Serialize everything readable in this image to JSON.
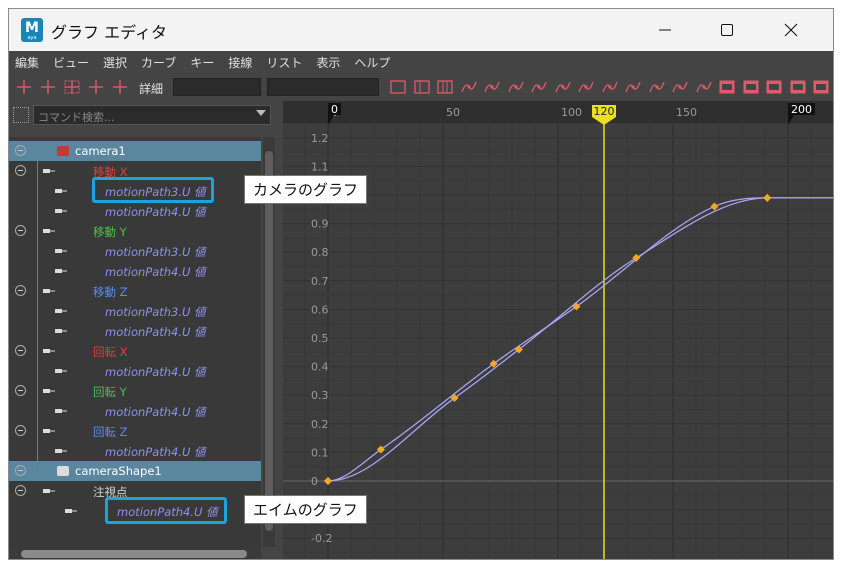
{
  "window": {
    "title": "グラフ エディタ",
    "app_icon_letter": "M",
    "app_icon_sub": "aya",
    "controls": [
      "minimize-icon",
      "maximize-icon",
      "close-icon"
    ]
  },
  "menu": [
    "編集",
    "ビュー",
    "選択",
    "カーブ",
    "キー",
    "接線",
    "リスト",
    "表示",
    "ヘルプ"
  ],
  "toolbar": {
    "detail_label": "詳細",
    "icons_left": [
      "move-nearest-key-icon",
      "insert-key-icon",
      "lattice-deform-icon",
      "region-select-icon",
      "retime-icon"
    ],
    "icons_right": [
      "frame-all-icon",
      "frame-selection-icon",
      "frame-playback-icon",
      "auto-tangent-icon",
      "spline-tangent-icon",
      "clamped-tangent-icon",
      "linear-tangent-icon",
      "flat-tangent-icon",
      "step-tangent-icon",
      "plateau-tangent-icon",
      "break-tangent-icon",
      "unify-tangent-icon",
      "free-weight-icon",
      "lock-weight-icon",
      "buffer-curve-icon",
      "swap-buffer-icon",
      "dope-sheet-icon",
      "trax-editor-icon",
      "time-editor-icon"
    ]
  },
  "outliner": {
    "search_placeholder": "コマンド検索...",
    "nodes": [
      {
        "type": "node",
        "label": "camera1",
        "selected": true
      },
      {
        "type": "attr",
        "label": "移動 X",
        "color": "#e0403a"
      },
      {
        "type": "curve",
        "label": "motionPath3.U 値"
      },
      {
        "type": "curve",
        "label": "motionPath4.U 値"
      },
      {
        "type": "attr",
        "label": "移動 Y",
        "color": "#4cc04c"
      },
      {
        "type": "curve",
        "label": "motionPath3.U 値"
      },
      {
        "type": "curve",
        "label": "motionPath4.U 値"
      },
      {
        "type": "attr",
        "label": "移動 Z",
        "color": "#5b8cf0"
      },
      {
        "type": "curve",
        "label": "motionPath3.U 値"
      },
      {
        "type": "curve",
        "label": "motionPath4.U 値"
      },
      {
        "type": "attr",
        "label": "回転 X",
        "color": "#e0403a"
      },
      {
        "type": "curve",
        "label": "motionPath4.U 値"
      },
      {
        "type": "attr",
        "label": "回転 Y",
        "color": "#4cc04c"
      },
      {
        "type": "curve",
        "label": "motionPath4.U 値"
      },
      {
        "type": "attr",
        "label": "回転 Z",
        "color": "#5b8cf0"
      },
      {
        "type": "curve",
        "label": "motionPath4.U 値"
      },
      {
        "type": "node",
        "label": "cameraShape1",
        "selected": true
      },
      {
        "type": "attr",
        "label": "注視点",
        "color": "#cfcfcf"
      },
      {
        "type": "curve",
        "label": "motionPath4.U 値"
      }
    ]
  },
  "graph": {
    "frame_ticks": [
      0,
      50,
      100,
      150
    ],
    "current_frame": 120,
    "range_start": 0,
    "range_end": 200,
    "value_ticks": [
      1.2,
      1.1,
      1.0,
      0.9,
      0.8,
      0.7,
      0.6,
      0.5,
      0.4,
      0.3,
      0.2,
      0.1,
      0,
      -0.1,
      -0.2
    ],
    "curve_color": "#a9a4f2",
    "key_color": "#f5a623",
    "current_frame_color": "#e8e020",
    "curves": [
      {
        "name": "motionPath3.U 値",
        "keys": [
          [
            0,
            0
          ],
          [
            23,
            0.11
          ],
          [
            72,
            0.41
          ],
          [
            108,
            0.61
          ],
          [
            168,
            0.96
          ],
          [
            191,
            0.99
          ]
        ]
      },
      {
        "name": "motionPath4.U 値",
        "keys": [
          [
            0,
            0
          ],
          [
            55,
            0.29
          ],
          [
            83,
            0.46
          ],
          [
            134,
            0.78
          ],
          [
            191,
            0.99
          ]
        ]
      }
    ]
  },
  "annotations": {
    "camera_graph": "カメラのグラフ",
    "aim_graph": "エイムのグラフ",
    "callout_color": "#1aa3e0"
  }
}
